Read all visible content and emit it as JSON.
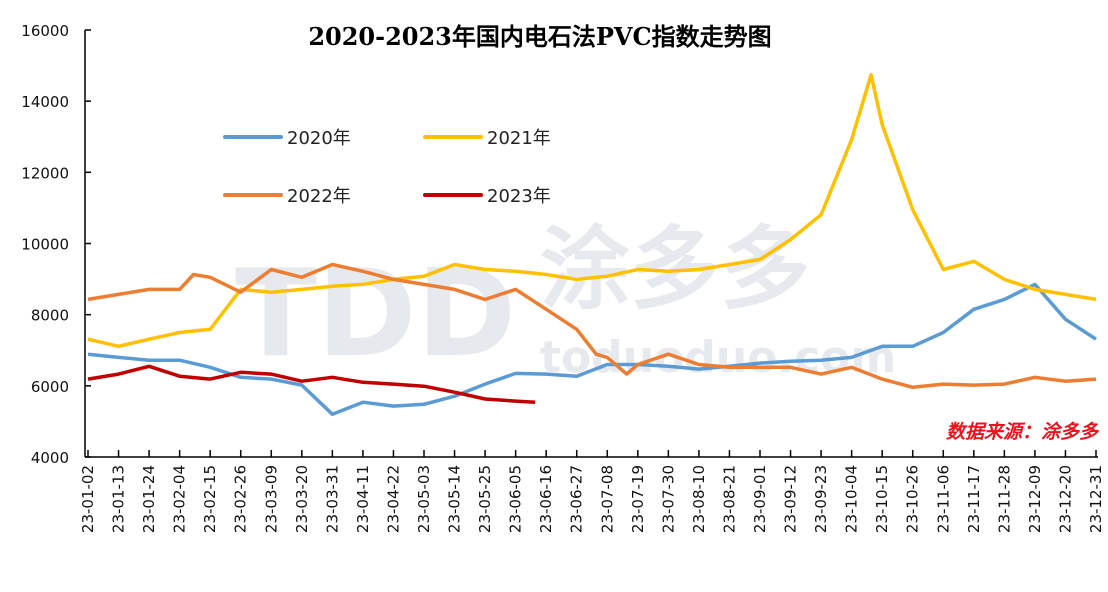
{
  "chart_data": {
    "type": "line",
    "title": "2020-2023年国内电石法PVC指数走势图",
    "source_note": "数据来源：涂多多",
    "watermark": "TDD 涂多多 toduoduo.com",
    "xlabel": "",
    "ylabel": "",
    "ylim": [
      4000,
      16000
    ],
    "yticks": [
      4000,
      6000,
      8000,
      10000,
      12000,
      14000,
      16000
    ],
    "grid": false,
    "legend_position": "top-left",
    "xticks": [
      "23-01-02",
      "23-01-13",
      "23-01-24",
      "23-02-04",
      "23-02-15",
      "23-02-26",
      "23-03-09",
      "23-03-20",
      "23-03-31",
      "23-04-11",
      "23-04-22",
      "23-05-03",
      "23-05-14",
      "23-05-25",
      "23-06-05",
      "23-06-16",
      "23-06-27",
      "23-07-08",
      "23-07-19",
      "23-07-30",
      "23-08-10",
      "23-08-21",
      "23-09-01",
      "23-09-12",
      "23-09-23",
      "23-10-04",
      "23-10-15",
      "23-10-26",
      "23-11-06",
      "23-11-17",
      "23-11-28",
      "23-12-09",
      "23-12-20",
      "23-12-31"
    ],
    "series": [
      {
        "name": "2020年",
        "color": "#5B9BD5",
        "points": [
          [
            "23-01-02",
            6890
          ],
          [
            "23-01-13",
            6800
          ],
          [
            "23-01-24",
            6720
          ],
          [
            "23-02-04",
            6720
          ],
          [
            "23-02-15",
            6520
          ],
          [
            "23-02-26",
            6240
          ],
          [
            "23-03-09",
            6190
          ],
          [
            "23-03-20",
            6020
          ],
          [
            "23-03-31",
            5200
          ],
          [
            "23-04-11",
            5540
          ],
          [
            "23-04-22",
            5430
          ],
          [
            "23-05-03",
            5480
          ],
          [
            "23-05-14",
            5710
          ],
          [
            "23-05-25",
            6050
          ],
          [
            "23-06-05",
            6350
          ],
          [
            "23-06-16",
            6330
          ],
          [
            "23-06-27",
            6270
          ],
          [
            "23-07-08",
            6600
          ],
          [
            "23-07-19",
            6600
          ],
          [
            "23-07-30",
            6550
          ],
          [
            "23-08-10",
            6470
          ],
          [
            "23-08-21",
            6550
          ],
          [
            "23-09-01",
            6640
          ],
          [
            "23-09-12",
            6690
          ],
          [
            "23-09-23",
            6720
          ],
          [
            "23-10-04",
            6800
          ],
          [
            "23-10-15",
            7110
          ],
          [
            "23-10-26",
            7110
          ],
          [
            "23-11-06",
            7500
          ],
          [
            "23-11-17",
            8150
          ],
          [
            "23-11-28",
            8430
          ],
          [
            "23-12-09",
            8850
          ],
          [
            "23-12-20",
            7870
          ],
          [
            "23-12-31",
            7310
          ]
        ]
      },
      {
        "name": "2021年",
        "color": "#FFC000",
        "points": [
          [
            "23-01-02",
            7310
          ],
          [
            "23-01-13",
            7110
          ],
          [
            "23-01-24",
            7310
          ],
          [
            "23-02-04",
            7500
          ],
          [
            "23-02-15",
            7590
          ],
          [
            "23-02-26",
            8710
          ],
          [
            "23-03-09",
            8630
          ],
          [
            "23-03-20",
            8710
          ],
          [
            "23-03-31",
            8800
          ],
          [
            "23-04-11",
            8850
          ],
          [
            "23-04-22",
            8990
          ],
          [
            "23-05-03",
            9080
          ],
          [
            "23-05-14",
            9410
          ],
          [
            "23-05-25",
            9270
          ],
          [
            "23-06-05",
            9220
          ],
          [
            "23-06-16",
            9130
          ],
          [
            "23-06-27",
            8990
          ],
          [
            "23-07-08",
            9080
          ],
          [
            "23-07-19",
            9270
          ],
          [
            "23-07-30",
            9220
          ],
          [
            "23-08-10",
            9270
          ],
          [
            "23-08-21",
            9410
          ],
          [
            "23-09-01",
            9550
          ],
          [
            "23-09-12",
            10110
          ],
          [
            "23-09-23",
            10810
          ],
          [
            "23-10-04",
            12920
          ],
          [
            "23-10-11",
            14740
          ],
          [
            "23-10-15",
            13340
          ],
          [
            "23-10-26",
            10950
          ],
          [
            "23-11-06",
            9270
          ],
          [
            "23-11-17",
            9500
          ],
          [
            "23-11-28",
            8990
          ],
          [
            "23-12-09",
            8710
          ],
          [
            "23-12-20",
            8570
          ],
          [
            "23-12-31",
            8430
          ]
        ]
      },
      {
        "name": "2022年",
        "color": "#ED7D31",
        "points": [
          [
            "23-01-02",
            8430
          ],
          [
            "23-01-13",
            8570
          ],
          [
            "23-01-24",
            8710
          ],
          [
            "23-02-04",
            8710
          ],
          [
            "23-02-09",
            9130
          ],
          [
            "23-02-15",
            9050
          ],
          [
            "23-02-26",
            8630
          ],
          [
            "23-03-09",
            9270
          ],
          [
            "23-03-20",
            9050
          ],
          [
            "23-03-31",
            9410
          ],
          [
            "23-04-11",
            9220
          ],
          [
            "23-04-22",
            8990
          ],
          [
            "23-05-03",
            8850
          ],
          [
            "23-05-14",
            8710
          ],
          [
            "23-05-25",
            8430
          ],
          [
            "23-06-05",
            8710
          ],
          [
            "23-06-16",
            8150
          ],
          [
            "23-06-27",
            7590
          ],
          [
            "23-07-04",
            6890
          ],
          [
            "23-07-08",
            6800
          ],
          [
            "23-07-15",
            6330
          ],
          [
            "23-07-19",
            6600
          ],
          [
            "23-07-30",
            6890
          ],
          [
            "23-08-10",
            6600
          ],
          [
            "23-08-21",
            6520
          ],
          [
            "23-09-01",
            6520
          ],
          [
            "23-09-12",
            6520
          ],
          [
            "23-09-23",
            6330
          ],
          [
            "23-10-04",
            6520
          ],
          [
            "23-10-15",
            6190
          ],
          [
            "23-10-26",
            5960
          ],
          [
            "23-11-06",
            6050
          ],
          [
            "23-11-17",
            6020
          ],
          [
            "23-11-28",
            6050
          ],
          [
            "23-12-09",
            6240
          ],
          [
            "23-12-20",
            6130
          ],
          [
            "23-12-31",
            6190
          ]
        ]
      },
      {
        "name": "2023年",
        "color": "#C00000",
        "points": [
          [
            "23-01-02",
            6190
          ],
          [
            "23-01-13",
            6330
          ],
          [
            "23-01-24",
            6550
          ],
          [
            "23-02-04",
            6270
          ],
          [
            "23-02-15",
            6190
          ],
          [
            "23-02-26",
            6380
          ],
          [
            "23-03-09",
            6330
          ],
          [
            "23-03-20",
            6130
          ],
          [
            "23-03-31",
            6240
          ],
          [
            "23-04-11",
            6100
          ],
          [
            "23-04-22",
            6050
          ],
          [
            "23-05-03",
            5990
          ],
          [
            "23-05-14",
            5820
          ],
          [
            "23-05-25",
            5630
          ],
          [
            "23-06-05",
            5570
          ],
          [
            "23-06-12",
            5540
          ]
        ]
      }
    ]
  }
}
